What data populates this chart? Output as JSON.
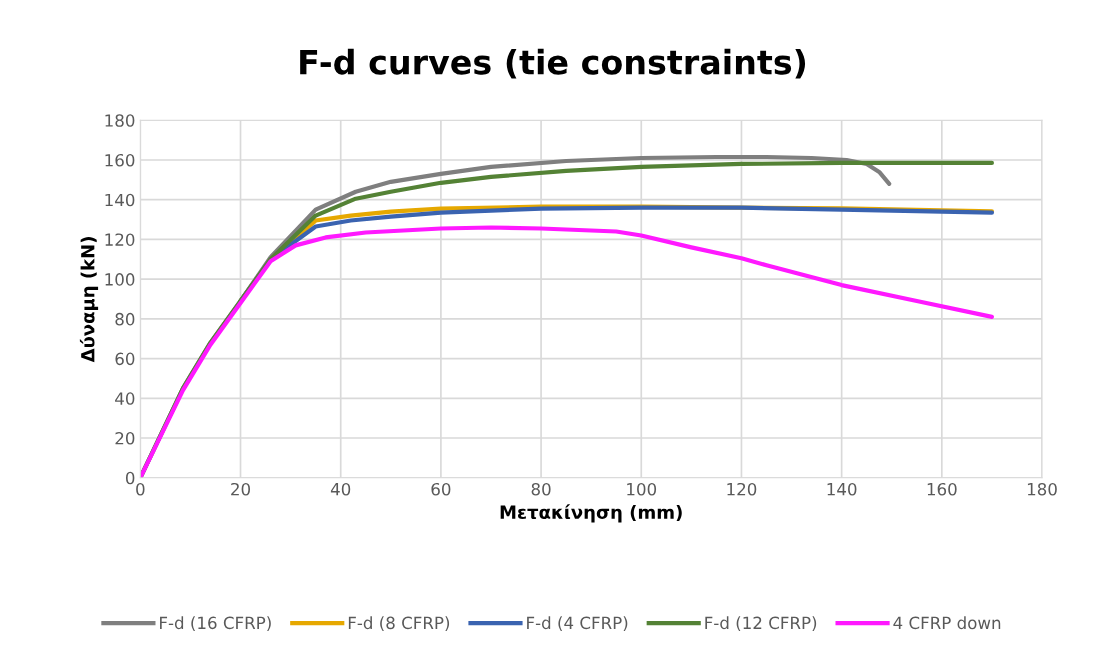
{
  "chart_data": {
    "type": "line",
    "title": "F-d curves (tie constraints)",
    "xlabel": "Μετακίνηση (mm)",
    "ylabel": "Δύναμη (kN)",
    "xlim": [
      0,
      180
    ],
    "ylim": [
      0,
      180
    ],
    "xticks": [
      0,
      20,
      40,
      60,
      80,
      100,
      120,
      140,
      160,
      180
    ],
    "yticks": [
      0,
      20,
      40,
      60,
      80,
      100,
      120,
      140,
      160,
      180
    ],
    "grid": true,
    "legend": "bottom",
    "marker": "none",
    "line_style": "solid",
    "series": [
      {
        "name": "F-d (16 CFRP)",
        "color": "#7f7f7f",
        "x": [
          0,
          8.5,
          14,
          20,
          26,
          35,
          43,
          50,
          60,
          70,
          85,
          100,
          115,
          125,
          134,
          141,
          145,
          147.5,
          149.5
        ],
        "values": [
          0,
          45,
          68,
          89,
          111,
          135,
          144,
          149,
          153,
          156.5,
          159.5,
          161,
          161.5,
          161.5,
          161,
          160,
          158,
          154,
          148
        ]
      },
      {
        "name": "F-d (8 CFRP)",
        "color": "#e6a800",
        "x": [
          20,
          26,
          35,
          42,
          50,
          60,
          80,
          100,
          120,
          140,
          170
        ],
        "values": [
          89,
          110,
          129.5,
          132,
          134,
          135.5,
          136.5,
          136.5,
          136,
          135.6,
          134.2
        ]
      },
      {
        "name": "F-d (4 CFRP)",
        "color": "#3a63b0",
        "x": [
          20,
          26,
          35,
          42,
          50,
          60,
          80,
          100,
          120,
          140,
          170
        ],
        "values": [
          89,
          110,
          126.5,
          129.5,
          131.5,
          133.5,
          135.5,
          136,
          136,
          135,
          133.5
        ]
      },
      {
        "name": "F-d (12 CFRP)",
        "color": "#548235",
        "x": [
          0,
          8.5,
          14,
          20,
          26,
          35,
          43,
          50,
          60,
          70,
          85,
          100,
          120,
          140,
          170
        ],
        "values": [
          0,
          45,
          68,
          89,
          110,
          132,
          140.5,
          144,
          148.5,
          151.5,
          154.5,
          156.5,
          158,
          158.5,
          158.5
        ]
      },
      {
        "name": "4 CFRP down",
        "color": "#ff19ff",
        "x": [
          0,
          8.5,
          14,
          20,
          26,
          31,
          37,
          45,
          60,
          70,
          80,
          95,
          100,
          110,
          120,
          125,
          140,
          155,
          170
        ],
        "values": [
          0,
          44,
          67,
          88,
          109,
          117,
          121,
          123.5,
          125.5,
          126,
          125.5,
          124,
          122,
          116,
          110.5,
          107,
          97,
          89,
          81
        ]
      }
    ]
  }
}
